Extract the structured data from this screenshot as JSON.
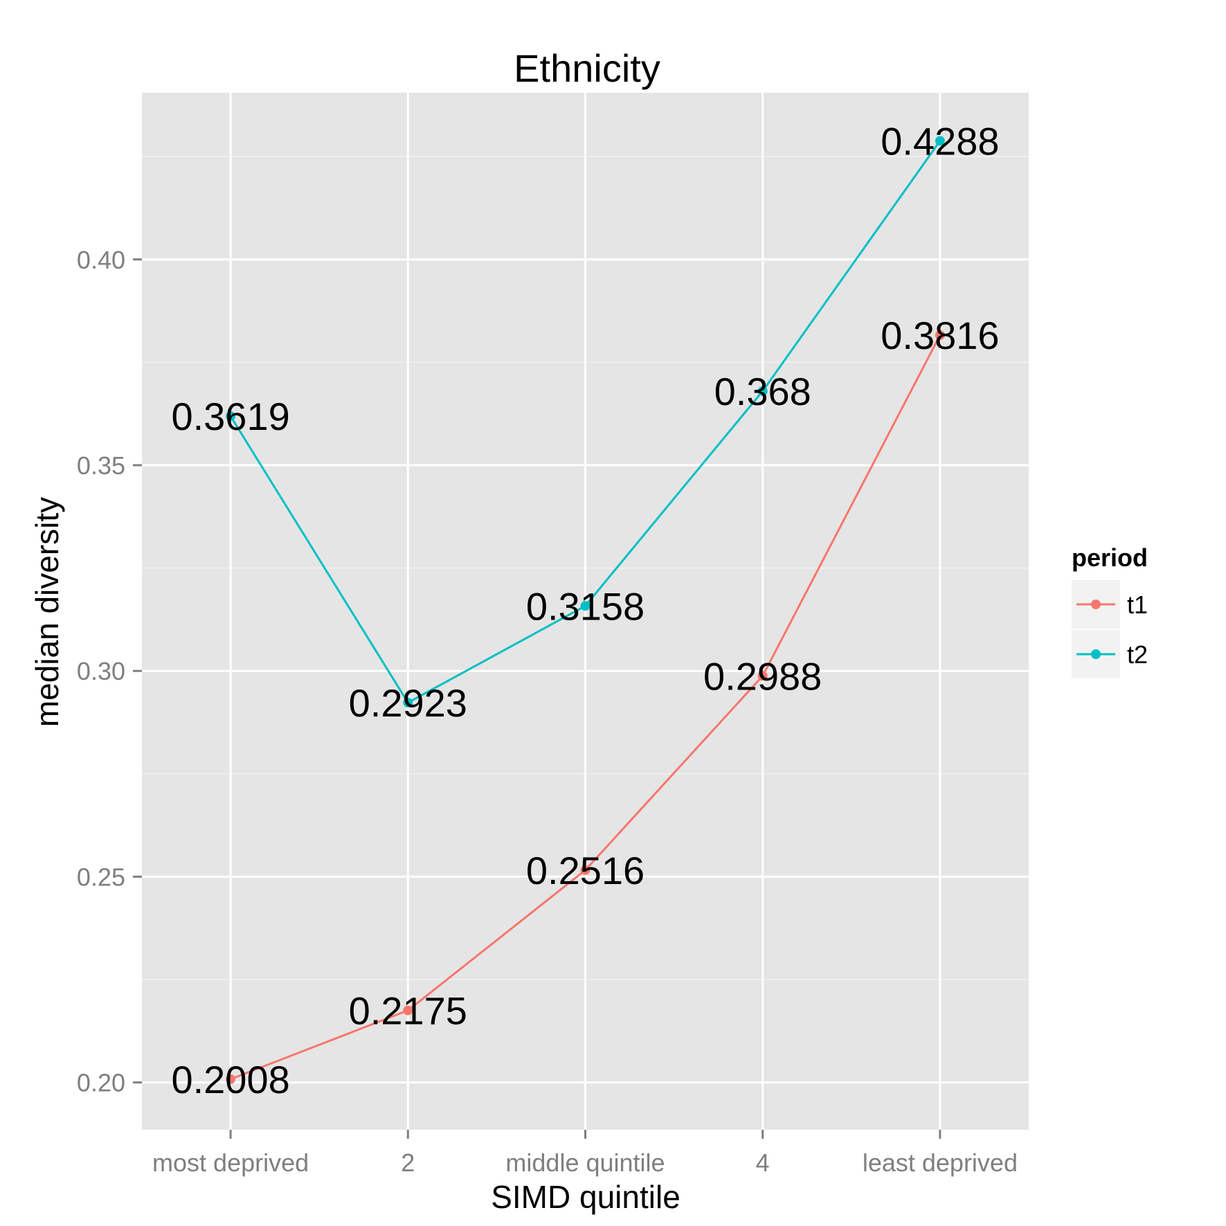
{
  "chart_data": {
    "type": "line",
    "title": "Ethnicity",
    "xlabel": "SIMD quintile",
    "ylabel": "median diversity",
    "categories": [
      "most deprived",
      "2",
      "middle quintile",
      "4",
      "least deprived"
    ],
    "ylim": [
      0.1885,
      0.4405
    ],
    "yticks": [
      0.2,
      0.25,
      0.3,
      0.35,
      0.4
    ],
    "ytick_labels": [
      "0.20",
      "0.25",
      "0.30",
      "0.35",
      "0.40"
    ],
    "grid": true,
    "legend": {
      "title": "period",
      "placement": "right"
    },
    "series": [
      {
        "name": "t1",
        "color": "#F8766D",
        "values": [
          0.2008,
          0.2175,
          0.2516,
          0.2988,
          0.3816
        ],
        "labels": [
          "0.2008",
          "0.2175",
          "0.2516",
          "0.2988",
          "0.3816"
        ]
      },
      {
        "name": "t2",
        "color": "#00BFC4",
        "values": [
          0.3619,
          0.2923,
          0.3158,
          0.368,
          0.4288
        ],
        "labels": [
          "0.3619",
          "0.2923",
          "0.3158",
          "0.368",
          "0.4288"
        ]
      }
    ]
  }
}
